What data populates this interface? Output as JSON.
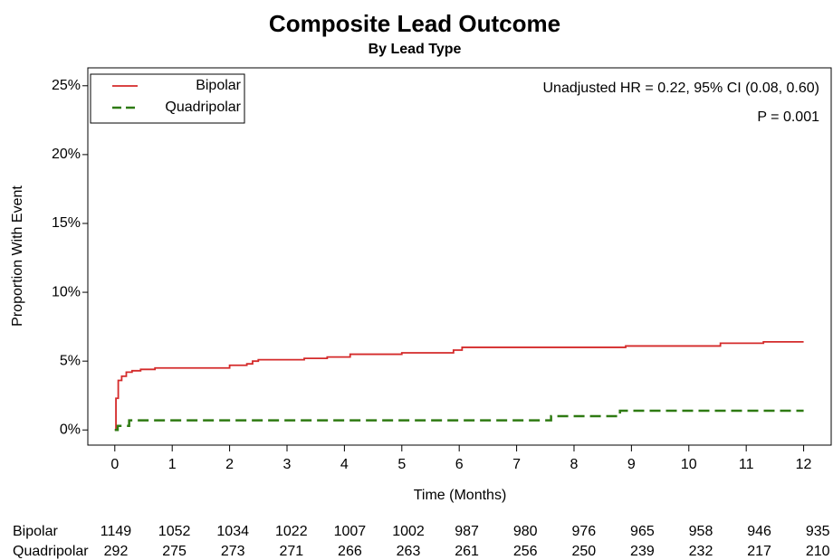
{
  "chart_data": {
    "type": "step",
    "title": "Composite Lead Outcome",
    "subtitle": "By Lead Type",
    "x_label": "Time (Months)",
    "y_label": "Proportion With Event",
    "xlim": [
      -0.47,
      12.48
    ],
    "ylim": [
      -1.1,
      26.3
    ],
    "xticks": [
      0,
      1,
      2,
      3,
      4,
      5,
      6,
      7,
      8,
      9,
      10,
      11,
      12
    ],
    "yticks": [
      {
        "value": 0,
        "label": "0%"
      },
      {
        "value": 5,
        "label": "5%"
      },
      {
        "value": 10,
        "label": "10%"
      },
      {
        "value": 15,
        "label": "15%"
      },
      {
        "value": 20,
        "label": "20%"
      },
      {
        "value": 25,
        "label": "25%"
      }
    ],
    "legend": "upper left",
    "annotations": [
      "Unadjusted HR = 0.22, 95% CI (0.08, 0.60)",
      "P = 0.001"
    ],
    "series": [
      {
        "name": "Bipolar",
        "color": "#d42a2a",
        "dash": false,
        "x": [
          0,
          0.02,
          0.06,
          0.12,
          0.2,
          0.3,
          0.45,
          0.7,
          2.0,
          2.3,
          2.4,
          2.5,
          3.3,
          3.7,
          4.1,
          5.0,
          5.9,
          6.05,
          8.9,
          10.55,
          11.3,
          12
        ],
        "values": [
          0,
          2.3,
          3.6,
          3.9,
          4.2,
          4.3,
          4.4,
          4.5,
          4.7,
          4.8,
          5.0,
          5.1,
          5.2,
          5.3,
          5.5,
          5.6,
          5.8,
          6.0,
          6.1,
          6.3,
          6.4,
          6.4
        ]
      },
      {
        "name": "Quadripolar",
        "color": "#2e7a12",
        "dash": true,
        "x": [
          0,
          0.05,
          0.25,
          7.6,
          8.8,
          12
        ],
        "values": [
          0,
          0.3,
          0.7,
          1.0,
          1.4,
          1.4
        ]
      }
    ],
    "risk_table": [
      {
        "name": "Bipolar",
        "counts": [
          1149,
          1052,
          1034,
          1022,
          1007,
          1002,
          987,
          980,
          976,
          965,
          958,
          946,
          935
        ]
      },
      {
        "name": "Quadripolar",
        "counts": [
          292,
          275,
          273,
          271,
          266,
          263,
          261,
          256,
          250,
          239,
          232,
          217,
          210
        ]
      }
    ]
  }
}
